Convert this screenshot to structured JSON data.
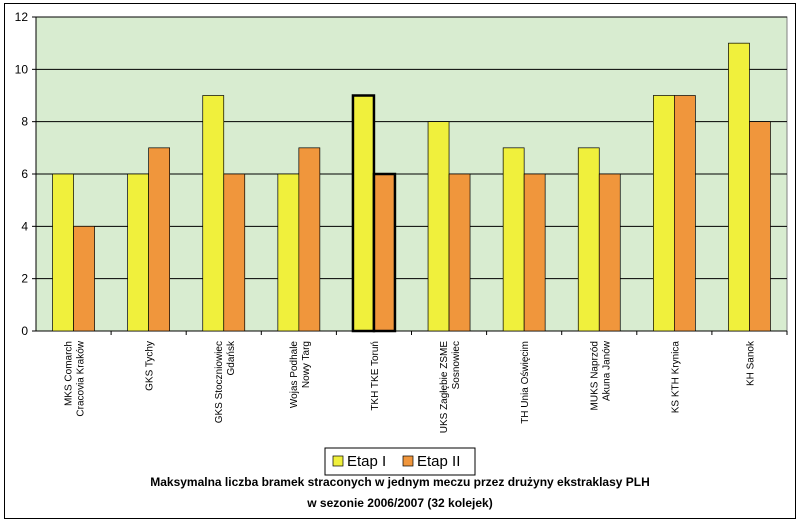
{
  "chart_data": {
    "type": "bar",
    "categories": [
      [
        "MKS Comarch",
        "Cracovia Kraków"
      ],
      [
        "GKS Tychy"
      ],
      [
        "GKS Stoczniowiec",
        "Gdańsk"
      ],
      [
        "Wojas Podhale",
        "Nowy Targ"
      ],
      [
        "TKH TKE Toruń"
      ],
      [
        "UKS Zagłębie ZSME",
        "Sosnowiec"
      ],
      [
        "TH Unia Oświęcim"
      ],
      [
        "MUKS Naprzód",
        "Akuna Janów"
      ],
      [
        "KS KTH Krynica"
      ],
      [
        "KH Sanok"
      ]
    ],
    "series": [
      {
        "name": "Etap I",
        "color": "#f0f03c",
        "values": [
          6,
          6,
          9,
          6,
          9,
          8,
          7,
          7,
          9,
          11
        ]
      },
      {
        "name": "Etap II",
        "color": "#f0963c",
        "values": [
          4,
          7,
          6,
          7,
          6,
          6,
          6,
          6,
          9,
          8
        ]
      }
    ],
    "highlighted_category_index": 4,
    "ylim": [
      0,
      12
    ],
    "yticks": [
      0,
      2,
      4,
      6,
      8,
      10,
      12
    ],
    "grid": true,
    "plot_background": "#d8ecd0",
    "legend_position": "bottom-center",
    "caption_line1": "Maksymalna liczba bramek straconych w jednym meczu przez drużyny ekstraklasy PLH",
    "caption_line2": "w sezonie 2006/2007 (32 kolejek)"
  }
}
